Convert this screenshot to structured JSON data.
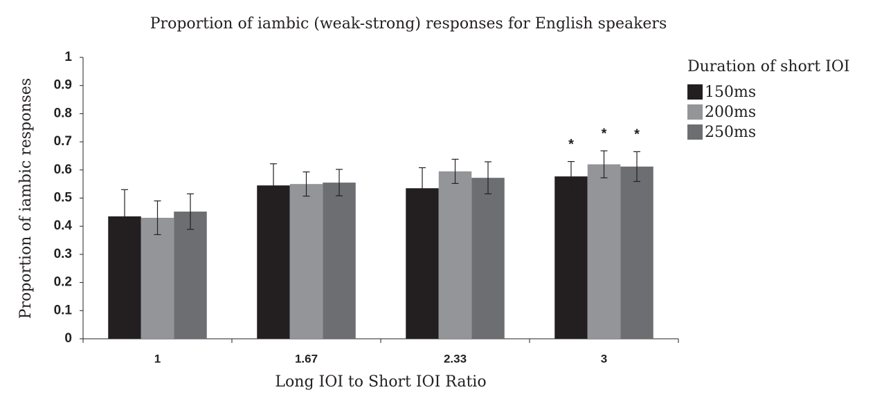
{
  "chart_data": {
    "type": "bar",
    "title": "Proportion of iambic (weak-strong) responses for English speakers",
    "x_label": "Long IOI to Short IOI Ratio",
    "y_label": "Proportion of iambic responses",
    "legend_title": "Duration of short IOI",
    "legend_position": "right",
    "grid": false,
    "categories": [
      "1",
      "1.67",
      "2.33",
      "3"
    ],
    "ylim": [
      0,
      1
    ],
    "yticks": [
      0,
      0.1,
      0.2,
      0.3,
      0.4,
      0.5,
      0.6,
      0.7,
      0.8,
      0.9,
      1
    ],
    "series": [
      {
        "name": "150ms",
        "color": "#231f20",
        "values": [
          0.435,
          0.545,
          0.535,
          0.577
        ],
        "errors": [
          0.095,
          0.077,
          0.073,
          0.053
        ],
        "markers": [
          null,
          null,
          null,
          "*"
        ]
      },
      {
        "name": "200ms",
        "color": "#939598",
        "values": [
          0.43,
          0.55,
          0.595,
          0.62
        ],
        "errors": [
          0.06,
          0.043,
          0.043,
          0.048
        ],
        "markers": [
          null,
          null,
          null,
          "*"
        ]
      },
      {
        "name": "250ms",
        "color": "#6d6e71",
        "values": [
          0.452,
          0.555,
          0.572,
          0.612
        ],
        "errors": [
          0.063,
          0.047,
          0.057,
          0.053
        ],
        "markers": [
          null,
          null,
          null,
          "*"
        ]
      }
    ]
  }
}
